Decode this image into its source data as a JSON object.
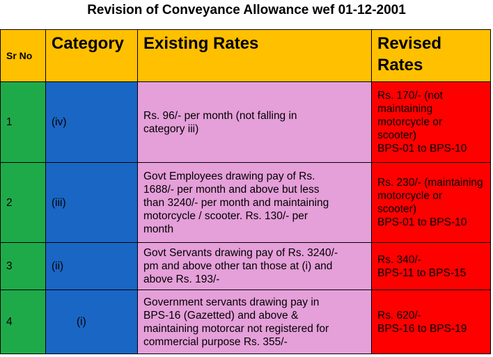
{
  "title": "Revision of Conveyance Allowance wef 01-12-2001",
  "headers": {
    "sr_no": "Sr No",
    "category": "Category",
    "existing": "Existing Rates",
    "revised_line1": "Revised",
    "revised_line2": "Rates"
  },
  "rows": [
    {
      "sr": "1",
      "category": "(iv)",
      "existing": [
        "Rs. 96/- per month (not falling in",
        "category iii)"
      ],
      "revised": [
        "Rs. 170/-  (not",
        "maintaining",
        "motorcycle or",
        "scooter)",
        "BPS-01 to BPS-10"
      ]
    },
    {
      "sr": "2",
      "category": "(iii)",
      "existing": [
        "Govt Employees drawing pay of Rs.",
        "1688/- per month and above but less",
        "than 3240/- per month and maintaining",
        "motorcycle / scooter.  Rs. 130/- per",
        "month"
      ],
      "revised": [
        "Rs. 230/- (maintaining",
        "motorcycle or",
        "scooter)",
        "BPS-01 to BPS-10"
      ]
    },
    {
      "sr": "3",
      "category": "(ii)",
      "existing": [
        "Govt Servants drawing pay of Rs. 3240/-",
        "pm and above other tan those at (i) and",
        "above Rs. 193/-"
      ],
      "revised": [
        "Rs. 340/-",
        "BPS-11 to BPS-15"
      ]
    },
    {
      "sr": "4",
      "category": "(i)",
      "existing": [
        "Government servants  drawing pay in",
        "BPS-16 (Gazetted) and above &",
        "maintaining motorcar not registered for",
        "commercial purpose Rs. 355/-"
      ],
      "revised": [
        "Rs. 620/-",
        "BPS-16 to BPS-19"
      ]
    }
  ],
  "colors": {
    "header": "#ffc000",
    "sr_column": "#1faa4a",
    "category_column": "#1a66c4",
    "existing_column": "#e59fd9",
    "revised_column": "#ff0000"
  }
}
